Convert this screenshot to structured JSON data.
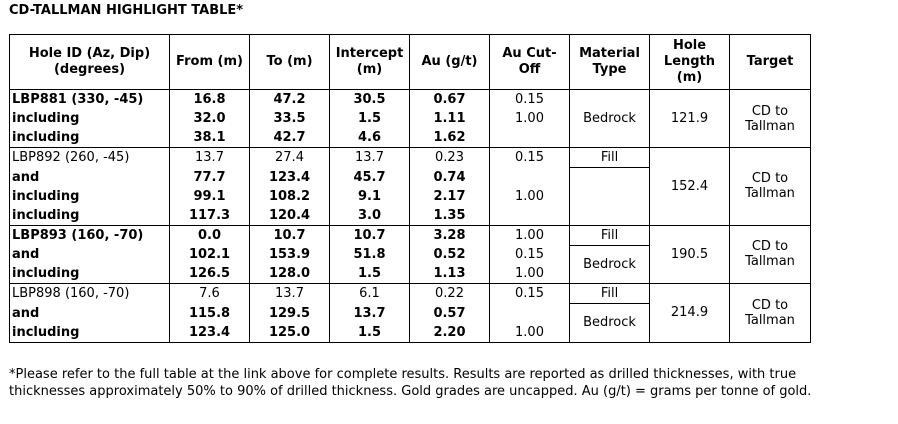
{
  "title": "CD-TALLMAN HIGHLIGHT TABLE*",
  "table": {
    "header": [
      "Hole ID (Az, Dip) (degrees)",
      "From (m)",
      "To (m)",
      "Intercept (m)",
      "Au (g/t)",
      "Au Cut-Off",
      "Material Type",
      "Hole Length (m)",
      "Target"
    ],
    "groups": [
      {
        "rows": [
          [
            "LBP881 (330, -45)",
            "16.8",
            "47.2",
            "30.5",
            "0.67"
          ],
          [
            "including",
            "32.0",
            "33.5",
            "1.5",
            "1.11"
          ],
          [
            "including",
            "38.1",
            "42.7",
            "4.6",
            "1.62"
          ]
        ],
        "cutoff": [
          "0.15",
          "1.00"
        ],
        "material": [
          "Bedrock"
        ],
        "length": "121.9",
        "target": "CD to Tallman"
      },
      {
        "rows": [
          [
            "LBP892 (260, -45)",
            "13.7",
            "27.4",
            "13.7",
            "0.23"
          ],
          [
            "and",
            "77.7",
            "123.4",
            "45.7",
            "0.74"
          ],
          [
            "including",
            "99.1",
            "108.2",
            "9.1",
            "2.17"
          ],
          [
            "including",
            "117.3",
            "120.4",
            "3.0",
            "1.35"
          ]
        ],
        "cutoff": [
          "0.15",
          "1.00"
        ],
        "material": [
          "Fill"
        ],
        "length": "152.4",
        "target": "CD to Tallman"
      },
      {
        "rows": [
          [
            "LBP893 (160, -70)",
            "0.0",
            "10.7",
            "10.7",
            "3.28"
          ],
          [
            "and",
            "102.1",
            "153.9",
            "51.8",
            "0.52"
          ],
          [
            "including",
            "126.5",
            "128.0",
            "1.5",
            "1.13"
          ]
        ],
        "cutoff": [
          "1.00",
          "0.15",
          "1.00"
        ],
        "material": [
          "Fill",
          "Bedrock"
        ],
        "length": "190.5",
        "target": "CD to Tallman"
      },
      {
        "rows": [
          [
            "LBP898 (160, -70)",
            "7.6",
            "13.7",
            "6.1",
            "0.22"
          ],
          [
            "and",
            "115.8",
            "129.5",
            "13.7",
            "0.57"
          ],
          [
            "including",
            "123.4",
            "125.0",
            "1.5",
            "2.20"
          ]
        ],
        "cutoff": [
          "0.15",
          "1.00"
        ],
        "material": [
          "Fill",
          "Bedrock"
        ],
        "length": "214.9",
        "target": "CD to Tallman"
      }
    ]
  },
  "footnote": "*Please refer to the full table at the link above for complete results. Results are reported as drilled thicknesses, with true thicknesses approximately 50% to 90% of drilled thickness. Gold grades are uncapped. Au (g/t) = grams per tonne of gold."
}
